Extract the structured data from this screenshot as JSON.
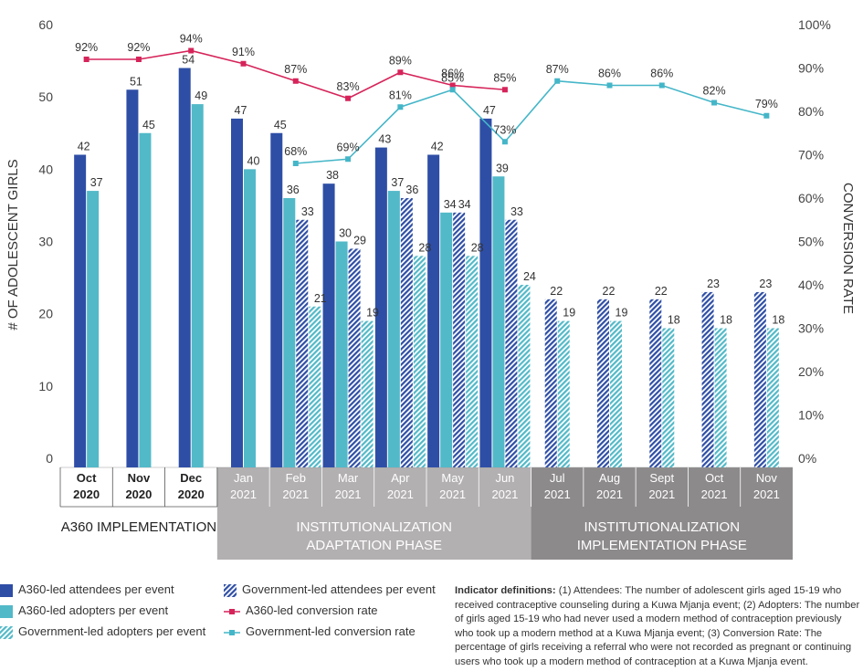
{
  "chart_data": {
    "type": "bar",
    "title": "",
    "ylabel": "# OF ADOLESCENT GIRLS",
    "y2label": "CONVERSION RATE",
    "ylim": [
      0,
      60
    ],
    "y2lim": [
      0,
      100
    ],
    "yticks": [
      "0",
      "10",
      "20",
      "30",
      "40",
      "50",
      "60"
    ],
    "y2ticks": [
      "0%",
      "10%",
      "20%",
      "30%",
      "40%",
      "50%",
      "60%",
      "70%",
      "80%",
      "90%",
      "100%"
    ],
    "months": [
      {
        "month": "Oct",
        "year": "2020"
      },
      {
        "month": "Nov",
        "year": "2020"
      },
      {
        "month": "Dec",
        "year": "2020"
      },
      {
        "month": "Jan",
        "year": "2021"
      },
      {
        "month": "Feb",
        "year": "2021"
      },
      {
        "month": "Mar",
        "year": "2021"
      },
      {
        "month": "Apr",
        "year": "2021"
      },
      {
        "month": "May",
        "year": "2021"
      },
      {
        "month": "Jun",
        "year": "2021"
      },
      {
        "month": "Jul",
        "year": "2021"
      },
      {
        "month": "Aug",
        "year": "2021"
      },
      {
        "month": "Sept",
        "year": "2021"
      },
      {
        "month": "Oct",
        "year": "2021"
      },
      {
        "month": "Nov",
        "year": "2021"
      }
    ],
    "phases": [
      {
        "label1": "A360 IMPLEMENTATION",
        "label2": "",
        "start": 0,
        "end": 2
      },
      {
        "label1": "INSTITUTIONALIZATION",
        "label2": "ADAPTATION PHASE",
        "start": 3,
        "end": 8
      },
      {
        "label1": "INSTITUTIONALIZATION",
        "label2": "IMPLEMENTATION PHASE",
        "start": 9,
        "end": 13
      }
    ],
    "bar_series": [
      {
        "name": "A360-led attendees per event",
        "color": "#2e4ea6",
        "hatched": false,
        "values": [
          42,
          51,
          54,
          47,
          45,
          38,
          43,
          42,
          47,
          null,
          null,
          null,
          null,
          null
        ],
        "labels": [
          "42",
          "51",
          "54",
          "47",
          "45",
          "38",
          "43",
          "42",
          "47",
          "",
          "",
          "",
          "",
          ""
        ]
      },
      {
        "name": "A360-led adopters per event",
        "color": "#52b9c8",
        "hatched": false,
        "values": [
          37,
          45,
          49,
          40,
          36,
          30,
          37,
          34,
          39,
          null,
          null,
          null,
          null,
          null
        ],
        "labels": [
          "37",
          "45",
          "49",
          "40",
          "36",
          "30",
          "37",
          "34",
          "39",
          "",
          "",
          "",
          "",
          ""
        ]
      },
      {
        "name": "Government-led attendees per event",
        "color": "#2e4ea6",
        "hatched": true,
        "values": [
          null,
          null,
          null,
          null,
          33,
          29,
          36,
          34,
          33,
          22,
          22,
          22,
          23,
          23
        ],
        "labels": [
          "",
          "",
          "",
          "",
          "33",
          "29",
          "36",
          "34",
          "33",
          "22",
          "22",
          "22",
          "23",
          "23"
        ]
      },
      {
        "name": "Government-led adopters per event",
        "color": "#52b9c8",
        "hatched": true,
        "values": [
          null,
          null,
          null,
          null,
          21,
          19,
          28,
          28,
          24,
          19,
          19,
          18,
          18,
          18
        ],
        "labels": [
          "",
          "",
          "",
          "",
          "21",
          "19",
          "28",
          "28",
          "24",
          "19",
          "19",
          "18",
          "18",
          "18"
        ]
      }
    ],
    "line_series": [
      {
        "name": "A360-led conversion rate",
        "color": "#d6245a",
        "values": [
          92,
          92,
          94,
          91,
          87,
          83,
          89,
          86,
          85,
          null,
          null,
          null,
          null,
          null
        ],
        "labels": [
          "92%",
          "92%",
          "94%",
          "91%",
          "87%",
          "83%",
          "89%",
          "86%",
          "85%",
          "",
          "",
          "",
          "",
          ""
        ]
      },
      {
        "name": "Government-led conversion rate",
        "color": "#44b6c8",
        "values": [
          null,
          null,
          null,
          null,
          68,
          69,
          81,
          85,
          73,
          87,
          86,
          86,
          82,
          79
        ],
        "labels": [
          "",
          "",
          "",
          "",
          "68%",
          "69%",
          "81%",
          "85%",
          "73%",
          "87%",
          "86%",
          "86%",
          "82%",
          "79%"
        ]
      }
    ]
  },
  "legend": [
    {
      "label": "A360-led attendees per event",
      "kind": "bar",
      "color": "#2e4ea6",
      "hatched": false
    },
    {
      "label": "A360-led adopters per event",
      "kind": "bar",
      "color": "#52b9c8",
      "hatched": false
    },
    {
      "label": "Government-led adopters per event",
      "kind": "bar",
      "color": "#52b9c8",
      "hatched": true
    },
    {
      "label": "Government-led attendees per event",
      "kind": "bar",
      "color": "#2e4ea6",
      "hatched": true
    },
    {
      "label": "A360-led conversion rate",
      "kind": "line",
      "color": "#d6245a",
      "hatched": false
    },
    {
      "label": "Government-led conversion rate",
      "kind": "line",
      "color": "#44b6c8",
      "hatched": false
    }
  ],
  "definitions": {
    "heading": "Indicator definitions:",
    "text": " (1) Attendees: The number of adolescent girls aged 15-19 who received contraceptive counseling during a Kuwa Mjanja event; (2) Adopters: The number of girls aged 15-19 who had never used a modern method of contraception previously who took up a modern method at a Kuwa Mjanja event; (3) Conversion Rate: The percentage of girls receiving a referral who were not recorded as pregnant or continuing users who took up a modern method of contraception at a Kuwa Mjanja event."
  }
}
